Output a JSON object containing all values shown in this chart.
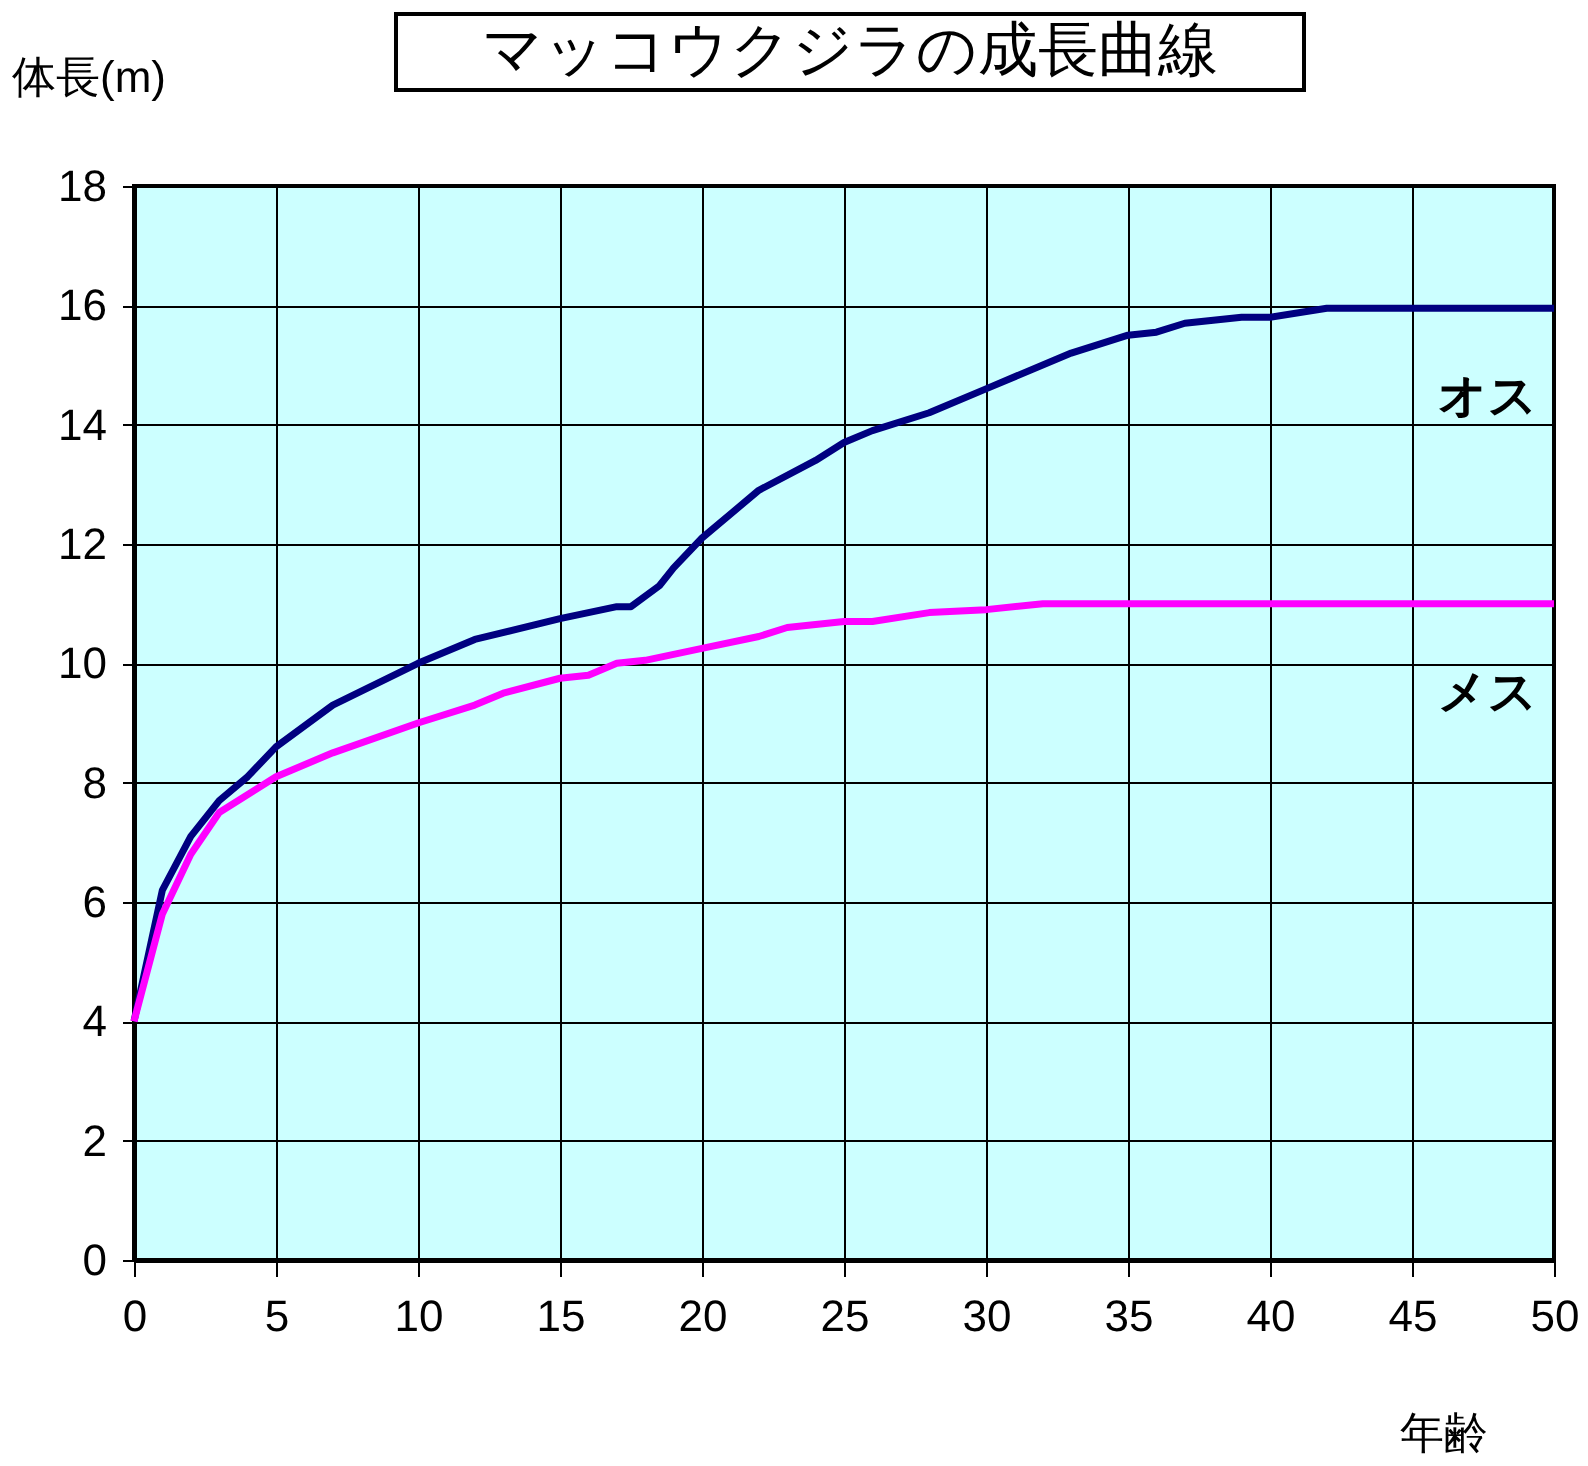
{
  "chart_data": {
    "type": "line",
    "title": "マッコウクジラの成長曲線",
    "xlabel": "年齢",
    "ylabel": "体長(m)",
    "x": [
      0,
      1,
      2,
      3,
      4,
      5,
      7,
      10,
      12,
      15,
      17,
      17.5,
      18.5,
      19,
      20,
      22,
      24,
      25,
      26,
      28,
      30,
      33,
      35,
      36,
      37,
      39,
      40,
      42,
      50
    ],
    "series": [
      {
        "name": "オス",
        "color": "#000080",
        "values": [
          4,
          6.2,
          7.1,
          7.7,
          8.1,
          8.6,
          9.3,
          10.0,
          10.4,
          10.75,
          10.95,
          10.95,
          11.3,
          11.6,
          12.1,
          12.9,
          13.4,
          13.7,
          13.9,
          14.2,
          14.6,
          15.2,
          15.5,
          15.55,
          15.7,
          15.8,
          15.8,
          15.95,
          15.95
        ]
      },
      {
        "name": "メス",
        "color": "#ff00ff",
        "x": [
          0,
          1,
          2,
          3,
          5,
          7,
          10,
          12,
          13,
          15,
          16,
          17,
          18,
          20,
          22,
          23,
          25,
          26,
          28,
          30,
          32,
          50
        ],
        "values": [
          4,
          5.8,
          6.8,
          7.5,
          8.1,
          8.5,
          9.0,
          9.3,
          9.5,
          9.75,
          9.8,
          10.0,
          10.05,
          10.25,
          10.45,
          10.6,
          10.7,
          10.7,
          10.85,
          10.9,
          11.0,
          11.0
        ]
      }
    ],
    "xlim": [
      0,
      50
    ],
    "xticks": [
      0,
      5,
      10,
      15,
      20,
      25,
      30,
      35,
      40,
      45,
      50
    ],
    "ylim": [
      0,
      18
    ],
    "yticks": [
      0,
      2,
      4,
      6,
      8,
      10,
      12,
      14,
      16,
      18
    ],
    "grid": true,
    "legend": false,
    "marker": "none",
    "line_style": "solid"
  }
}
